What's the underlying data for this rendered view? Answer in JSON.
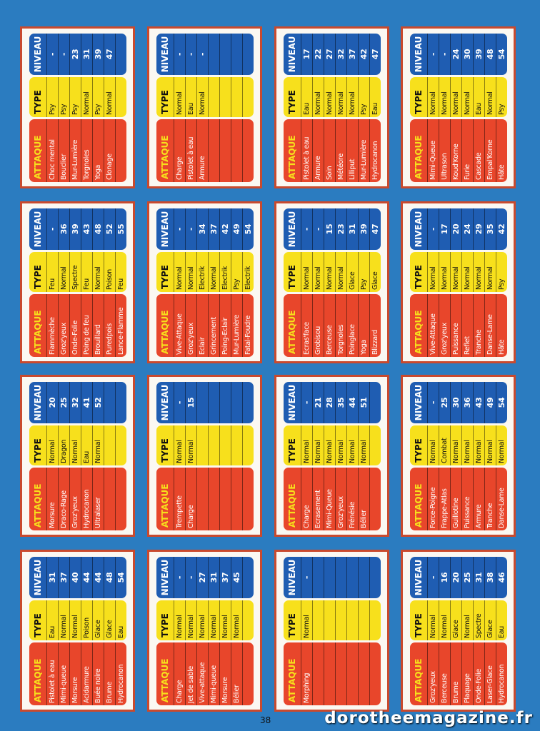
{
  "headers": [
    "ATTAQUE",
    "TYPE",
    "NIVEAU"
  ],
  "cards": [
    {
      "rows": [
        [
          "Choc mental",
          "Psy",
          "-"
        ],
        [
          "Bouclier",
          "Psy",
          "-"
        ],
        [
          "Mur-Lumière",
          "Psy",
          "23"
        ],
        [
          "Torgnoles",
          "Normal",
          "31"
        ],
        [
          "Yoga",
          "Psy",
          "39"
        ],
        [
          "Clonage",
          "Normal",
          "47"
        ]
      ]
    },
    {
      "rows": [
        [
          "Charge",
          "Normal",
          "-"
        ],
        [
          "Pistolet à eau",
          "Eau",
          "-"
        ],
        [
          "Armure",
          "Normal",
          "-"
        ]
      ]
    },
    {
      "rows": [
        [
          "Pistolet à eau",
          "Eau",
          "17"
        ],
        [
          "Armure",
          "Normal",
          "22"
        ],
        [
          "Soin",
          "Normal",
          "27"
        ],
        [
          "Météore",
          "Normal",
          "32"
        ],
        [
          "Lilliput",
          "Normal",
          "37"
        ],
        [
          "Mur-Lumière",
          "Psy",
          "42"
        ],
        [
          "Hydrocanon",
          "Eau",
          "47"
        ]
      ]
    },
    {
      "rows": [
        [
          "Mimi-Queue",
          "Normal",
          "-"
        ],
        [
          "Ultrason",
          "Normal",
          "-"
        ],
        [
          "Koud'Korne",
          "Normal",
          "24"
        ],
        [
          "Furie",
          "Normal",
          "30"
        ],
        [
          "Cascade",
          "Eau",
          "39"
        ],
        [
          "Empal'Korne",
          "Normal",
          "48"
        ],
        [
          "Hâte",
          "Psy",
          "54"
        ]
      ]
    },
    {
      "rows": [
        [
          "Flammèche",
          "Feu",
          "-"
        ],
        [
          "Groz'yeux",
          "Normal",
          "36"
        ],
        [
          "Onde-Folie",
          "Spectre",
          "39"
        ],
        [
          "Poing de feu",
          "Feu",
          "43"
        ],
        [
          "Brouillard",
          "Normal",
          "48"
        ],
        [
          "Puredpois",
          "Poison",
          "52"
        ],
        [
          "Lance-Flamme",
          "Feu",
          "55"
        ]
      ]
    },
    {
      "rows": [
        [
          "Vive-Attaque",
          "Normal",
          "-"
        ],
        [
          "Groz'yeux",
          "Normal",
          "-"
        ],
        [
          "Eclair",
          "Electrik",
          "34"
        ],
        [
          "Grincement",
          "Normal",
          "37"
        ],
        [
          "Poing-Eclair",
          "Electrik",
          "42"
        ],
        [
          "Mur-Lumière",
          "Psy",
          "49"
        ],
        [
          "Fatal-Foudre",
          "Electrik",
          "54"
        ]
      ]
    },
    {
      "rows": [
        [
          "Ecras'face",
          "Normal",
          "-"
        ],
        [
          "Grobisou",
          "Normal",
          "-"
        ],
        [
          "Berceuse",
          "Normal",
          "15"
        ],
        [
          "Torgnoles",
          "Normal",
          "23"
        ],
        [
          "Poinglace",
          "Glace",
          "31"
        ],
        [
          "Yoga",
          "Psy",
          "39"
        ],
        [
          "Blizzard",
          "Glace",
          "47"
        ]
      ]
    },
    {
      "rows": [
        [
          "Vive-Attaque",
          "Normal",
          "-"
        ],
        [
          "Groz'yeux",
          "Normal",
          "17"
        ],
        [
          "Puissance",
          "Normal",
          "20"
        ],
        [
          "Reflet",
          "Normal",
          "24"
        ],
        [
          "Tranche",
          "Normal",
          "29"
        ],
        [
          "Danse-Lame",
          "Normal",
          "35"
        ],
        [
          "Hâte",
          "Psy",
          "42"
        ]
      ]
    },
    {
      "rows": [
        [
          "Morsure",
          "Normal",
          "20"
        ],
        [
          "Draco-Rage",
          "Dragon",
          "25"
        ],
        [
          "Groz'yeux",
          "Normal",
          "32"
        ],
        [
          "Hydrocanon",
          "Eau",
          "41"
        ],
        [
          "Ultralaser",
          "Normal",
          "52"
        ]
      ]
    },
    {
      "rows": [
        [
          "Trempette",
          "Normal",
          "-"
        ],
        [
          "Charge",
          "Normal",
          "15"
        ]
      ]
    },
    {
      "rows": [
        [
          "Charge",
          "Normal",
          "-"
        ],
        [
          "Ecrasement",
          "Normal",
          "21"
        ],
        [
          "Mimi-Queue",
          "Normal",
          "28"
        ],
        [
          "Groz'yeux",
          "Normal",
          "35"
        ],
        [
          "Frénésie",
          "Normal",
          "44"
        ],
        [
          "Bélier",
          "Normal",
          "51"
        ]
      ]
    },
    {
      "rows": [
        [
          "Force-Poigne",
          "Normal",
          "-"
        ],
        [
          "Frappe-Atlas",
          "Combat",
          "25"
        ],
        [
          "Guillotine",
          "Normal",
          "30"
        ],
        [
          "Puissance",
          "Normal",
          "36"
        ],
        [
          "Armure",
          "Normal",
          "43"
        ],
        [
          "Tranche",
          "Normal",
          "49"
        ],
        [
          "Danse-Lame",
          "Normal",
          "54"
        ]
      ]
    },
    {
      "rows": [
        [
          "Pistolet à eau",
          "Eau",
          "31"
        ],
        [
          "Mimi-queue",
          "Normal",
          "37"
        ],
        [
          "Morsure",
          "Normal",
          "40"
        ],
        [
          "Acidarmure",
          "Poison",
          "44"
        ],
        [
          "Buée noire",
          "Glace",
          "44"
        ],
        [
          "Brume",
          "Glace",
          "48"
        ],
        [
          "Hydrocanon",
          "Eau",
          "54"
        ]
      ]
    },
    {
      "rows": [
        [
          "Charge",
          "Normal",
          "-"
        ],
        [
          "Jet de sable",
          "Normal",
          "-"
        ],
        [
          "Vive-attaque",
          "Normal",
          "27"
        ],
        [
          "Mimi-queue",
          "Normal",
          "31"
        ],
        [
          "Morsure",
          "Normal",
          "37"
        ],
        [
          "Bélier",
          "Normal",
          "45"
        ]
      ]
    },
    {
      "rows": [
        [
          "Morphing",
          "Normal",
          "-"
        ]
      ]
    },
    {
      "rows": [
        [
          "Groz'yeux",
          "Normal",
          "-"
        ],
        [
          "Berceuse",
          "Normal",
          "16"
        ],
        [
          "Brume",
          "Glace",
          "20"
        ],
        [
          "Plaquage",
          "Normal",
          "25"
        ],
        [
          "Onde-Folie",
          "Spectre",
          "31"
        ],
        [
          "Laser-Glace",
          "Glace",
          "38"
        ],
        [
          "Hydrocanon",
          "Eau",
          "46"
        ]
      ]
    }
  ],
  "page_number": "38",
  "watermark": "dorotheemagazine.fr"
}
